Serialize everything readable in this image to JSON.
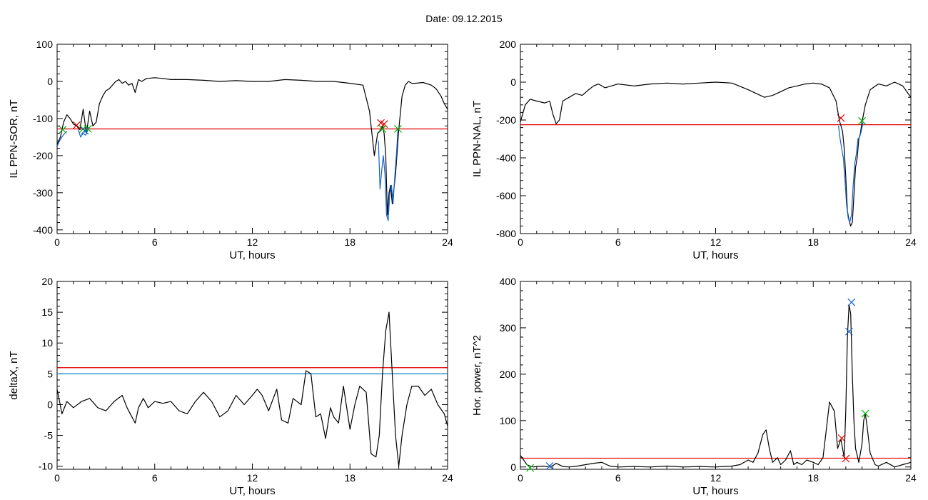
{
  "figure": {
    "date_label": "Date:  09.12.2015"
  },
  "chart_data": [
    {
      "type": "line",
      "id": "sor",
      "xlabel": "UT, hours",
      "ylabel": "IL PPN-SOR, nT",
      "xlim": [
        0,
        24
      ],
      "ylim": [
        -410,
        100
      ],
      "xticks": [
        0,
        6,
        12,
        18,
        24
      ],
      "yticks": [
        100,
        0,
        -100,
        -200,
        -300,
        -400
      ],
      "thresholds": [
        {
          "color": "#e00000",
          "y": -128
        }
      ],
      "series": [
        {
          "color": "#000000",
          "x": [
            0,
            0.2,
            0.4,
            0.6,
            0.8,
            1.0,
            1.2,
            1.4,
            1.6,
            1.8,
            2.0,
            2.2,
            2.4,
            2.6,
            2.8,
            3.0,
            3.2,
            3.4,
            3.6,
            3.8,
            4.0,
            4.2,
            4.4,
            4.6,
            4.8,
            5.0,
            5.2,
            5.5,
            6.0,
            6.5,
            7.0,
            8.0,
            9.0,
            10.0,
            11.0,
            12.0,
            13.0,
            14.0,
            15.0,
            16.0,
            17.0,
            18.0,
            18.8,
            19.2,
            19.5,
            19.7,
            19.9,
            20.0,
            20.1,
            20.2,
            20.3,
            20.4,
            20.5,
            20.6,
            20.8,
            21.0,
            21.2,
            21.4,
            21.6,
            21.8,
            22.0,
            22.5,
            23.0,
            23.3,
            23.6,
            23.8,
            24.0
          ],
          "y": [
            -170,
            -150,
            -110,
            -90,
            -100,
            -115,
            -120,
            -130,
            -75,
            -140,
            -80,
            -120,
            -110,
            -60,
            -40,
            -25,
            -20,
            -10,
            0,
            5,
            -5,
            0,
            -10,
            -5,
            -30,
            5,
            0,
            8,
            10,
            8,
            5,
            5,
            3,
            0,
            2,
            0,
            0,
            5,
            3,
            0,
            0,
            -5,
            -10,
            -80,
            -200,
            -140,
            -130,
            -120,
            -140,
            -200,
            -360,
            -300,
            -280,
            -330,
            -250,
            -130,
            -40,
            -10,
            0,
            -5,
            -5,
            -3,
            -10,
            -20,
            -40,
            -60,
            -75
          ]
        },
        {
          "color": "#1060d0",
          "x": [
            0,
            0.15,
            0.3,
            0.45,
            0.6
          ],
          "y": [
            -175,
            -160,
            -150,
            -140,
            -135
          ]
        },
        {
          "color": "#1060d0",
          "x": [
            1.3,
            1.45,
            1.6,
            1.75,
            1.9
          ],
          "y": [
            -130,
            -150,
            -140,
            -145,
            -130
          ]
        },
        {
          "color": "#1060d0",
          "x": [
            19.75,
            19.85,
            19.95,
            20.05,
            20.15,
            20.25,
            20.35,
            20.45,
            20.55,
            20.65,
            20.75,
            20.85,
            20.95
          ],
          "y": [
            -160,
            -290,
            -240,
            -200,
            -250,
            -360,
            -375,
            -300,
            -280,
            -330,
            -260,
            -200,
            -130
          ]
        }
      ],
      "markers": [
        {
          "color": "#e00000",
          "x": [
            1.2,
            19.9,
            20.1
          ],
          "y": [
            -118,
            -112,
            -115
          ]
        },
        {
          "color": "#00b000",
          "x": [
            0.35,
            1.6,
            1.9,
            20.0,
            20.95
          ],
          "y": [
            -130,
            -128,
            -128,
            -128,
            -128
          ]
        },
        {
          "color": "#1060d0",
          "x": [
            1.7
          ],
          "y": [
            -133
          ]
        }
      ]
    },
    {
      "type": "line",
      "id": "nal",
      "xlabel": "UT, hours",
      "ylabel": "IL PPN-NAL, nT",
      "xlim": [
        0,
        24
      ],
      "ylim": [
        -800,
        200
      ],
      "xticks": [
        0,
        6,
        12,
        18,
        24
      ],
      "yticks": [
        200,
        0,
        -200,
        -400,
        -600,
        -800
      ],
      "thresholds": [
        {
          "color": "#e00000",
          "y": -225
        }
      ],
      "series": [
        {
          "color": "#000000",
          "x": [
            0,
            0.3,
            0.6,
            1.0,
            1.5,
            1.8,
            2.0,
            2.2,
            2.4,
            2.6,
            3.0,
            3.4,
            3.8,
            4.2,
            4.5,
            4.8,
            5.2,
            6.0,
            7.0,
            8.0,
            9.0,
            10.0,
            11.0,
            12.0,
            13.0,
            14.0,
            14.5,
            15.0,
            15.5,
            16.0,
            16.5,
            17.0,
            17.5,
            18.0,
            18.5,
            19.0,
            19.4,
            19.6,
            19.8,
            19.9,
            20.0,
            20.1,
            20.2,
            20.3,
            20.4,
            20.5,
            20.6,
            20.7,
            20.8,
            20.9,
            21.0,
            21.2,
            21.5,
            22.0,
            22.5,
            23.0,
            23.5,
            24.0
          ],
          "y": [
            -210,
            -120,
            -90,
            -100,
            -110,
            -100,
            -170,
            -220,
            -200,
            -100,
            -80,
            -60,
            -70,
            -40,
            -20,
            -10,
            -30,
            -10,
            -20,
            -10,
            -5,
            -10,
            -5,
            0,
            -5,
            -40,
            -60,
            -80,
            -70,
            -50,
            -30,
            -20,
            -10,
            -5,
            -10,
            -30,
            -100,
            -200,
            -260,
            -350,
            -500,
            -680,
            -730,
            -760,
            -740,
            -600,
            -450,
            -400,
            -300,
            -270,
            -210,
            -120,
            -40,
            -10,
            -20,
            0,
            -20,
            -80
          ]
        },
        {
          "color": "#1060d0",
          "x": [
            19.55,
            19.65,
            19.75,
            19.85,
            19.95,
            20.05,
            20.15,
            20.25,
            20.35,
            20.45,
            20.55,
            20.65,
            20.75,
            20.85,
            20.95,
            21.05
          ],
          "y": [
            -230,
            -300,
            -350,
            -400,
            -520,
            -650,
            -720,
            -740,
            -700,
            -550,
            -430,
            -380,
            -300,
            -290,
            -260,
            -215
          ]
        }
      ],
      "markers": [
        {
          "color": "#e00000",
          "x": [
            19.7
          ],
          "y": [
            -190
          ]
        },
        {
          "color": "#00b000",
          "x": [
            21.0
          ],
          "y": [
            -205
          ]
        }
      ]
    },
    {
      "type": "line",
      "id": "deltax",
      "xlabel": "UT, hours",
      "ylabel": "deltaX, nT",
      "xlim": [
        0,
        24
      ],
      "ylim": [
        -10.5,
        20
      ],
      "xticks": [
        0,
        6,
        12,
        18,
        24
      ],
      "yticks": [
        20,
        15,
        10,
        5,
        0,
        -5,
        -10
      ],
      "thresholds": [
        {
          "color": "#e00000",
          "y": 6
        },
        {
          "color": "#1080c0",
          "y": 5
        }
      ],
      "series": [
        {
          "color": "#000000",
          "x": [
            0,
            0.3,
            0.6,
            1.0,
            1.5,
            2.0,
            2.5,
            3.0,
            3.5,
            4.0,
            4.3,
            4.6,
            4.8,
            5.0,
            5.3,
            5.6,
            6.0,
            6.5,
            7.0,
            7.5,
            8.0,
            8.5,
            9.0,
            9.5,
            10.0,
            10.5,
            11.0,
            11.5,
            12.0,
            12.3,
            12.6,
            13.0,
            13.5,
            13.8,
            14.2,
            14.5,
            15.0,
            15.3,
            15.6,
            15.9,
            16.2,
            16.5,
            16.8,
            17.0,
            17.3,
            17.6,
            18.0,
            18.3,
            18.6,
            19.0,
            19.3,
            19.6,
            19.8,
            20.0,
            20.2,
            20.4,
            20.6,
            20.8,
            21.0,
            21.2,
            21.5,
            21.8,
            22.2,
            22.6,
            23.0,
            23.4,
            23.8,
            24.0
          ],
          "y": [
            2.5,
            -1.5,
            0.5,
            -0.5,
            0.5,
            1.0,
            -0.5,
            -1.0,
            0.5,
            1.5,
            -0.5,
            -2.0,
            -3.0,
            -0.5,
            1.0,
            -0.5,
            0.5,
            0.2,
            0.5,
            -1.0,
            -1.5,
            0.5,
            2.0,
            0.5,
            -2.0,
            -1.0,
            1.5,
            0.0,
            1.5,
            2.5,
            1.5,
            -1.0,
            2.5,
            -2.5,
            -3.0,
            1.0,
            0.0,
            5.5,
            5.0,
            -2.0,
            -1.5,
            -5.5,
            -0.5,
            -2.0,
            -3.0,
            3.0,
            -4.0,
            0.0,
            3.0,
            2.0,
            -8.0,
            -8.5,
            -5.0,
            5.0,
            12.0,
            15.0,
            5.0,
            -5.0,
            -10.0,
            -5.0,
            0.0,
            3.0,
            3.0,
            1.5,
            2.5,
            0.0,
            -1.5,
            -3.5
          ]
        }
      ],
      "markers": []
    },
    {
      "type": "line",
      "id": "power",
      "xlabel": "UT, hours",
      "ylabel": "Hor. power, nT^2",
      "xlim": [
        0,
        24
      ],
      "ylim": [
        -5,
        400
      ],
      "xticks": [
        0,
        6,
        12,
        18,
        24
      ],
      "yticks": [
        400,
        300,
        200,
        100,
        0
      ],
      "thresholds": [
        {
          "color": "#e00000",
          "y": 19
        }
      ],
      "series": [
        {
          "color": "#000000",
          "x": [
            0,
            0.2,
            0.4,
            0.6,
            0.8,
            1.0,
            1.4,
            1.8,
            2.0,
            2.2,
            2.6,
            3.0,
            3.5,
            4.0,
            4.5,
            5.0,
            5.5,
            6.0,
            7.0,
            8.0,
            9.0,
            10.0,
            11.0,
            12.0,
            13.0,
            13.5,
            14.0,
            14.3,
            14.6,
            14.9,
            15.1,
            15.3,
            15.5,
            15.8,
            16.0,
            16.3,
            16.6,
            16.8,
            17.0,
            17.3,
            17.6,
            18.0,
            18.3,
            18.6,
            18.8,
            19.0,
            19.3,
            19.5,
            19.7,
            19.9,
            20.0,
            20.1,
            20.2,
            20.3,
            20.4,
            20.5,
            20.6,
            20.8,
            21.0,
            21.1,
            21.2,
            21.3,
            21.5,
            21.8,
            22.0,
            22.5,
            23.0,
            23.5,
            24.0
          ],
          "y": [
            25,
            15,
            5,
            2,
            0,
            1,
            2,
            0,
            3,
            8,
            1,
            0,
            2,
            5,
            8,
            10,
            2,
            0,
            1,
            0,
            2,
            0,
            1,
            0,
            2,
            5,
            15,
            10,
            30,
            70,
            80,
            40,
            10,
            20,
            5,
            15,
            35,
            5,
            10,
            5,
            15,
            10,
            5,
            20,
            80,
            140,
            120,
            40,
            60,
            20,
            120,
            280,
            350,
            330,
            200,
            100,
            40,
            10,
            50,
            100,
            115,
            90,
            30,
            5,
            2,
            10,
            0,
            5,
            10
          ]
        }
      ],
      "markers": [
        {
          "color": "#e00000",
          "x": [
            19.75,
            20.0
          ],
          "y": [
            62,
            18
          ]
        },
        {
          "color": "#00b000",
          "x": [
            0.6,
            21.2
          ],
          "y": [
            -2,
            115
          ]
        },
        {
          "color": "#1060d0",
          "x": [
            1.8,
            20.2,
            20.35
          ],
          "y": [
            2,
            292,
            355
          ]
        }
      ]
    }
  ]
}
